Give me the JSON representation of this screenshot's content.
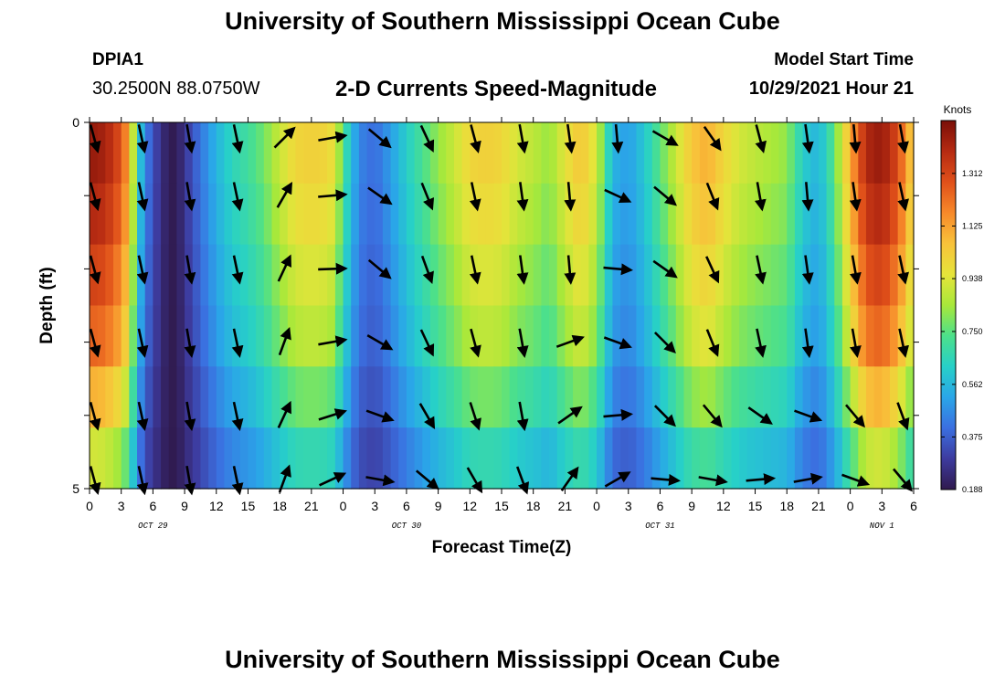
{
  "page": {
    "title_top": "University of Southern Mississippi Ocean Cube",
    "title_bottom": "University of Southern Mississippi Ocean Cube",
    "station_id": "DPIA1",
    "station_coords": "30.2500N  88.0750W",
    "chart_heading": "2-D Currents Speed-Magnitude",
    "model_start_label": "Model Start Time",
    "model_start_value": "10/29/2021 Hour 21"
  },
  "colors": {
    "arrow": "#000000",
    "palette": [
      "#301a4e",
      "#3d3b9e",
      "#3b6fe0",
      "#2aa6e8",
      "#27d0c8",
      "#4de08a",
      "#a8e83a",
      "#e6e43a",
      "#f8c23a",
      "#f7892a",
      "#e0501a",
      "#b52a12",
      "#7a0f08"
    ]
  },
  "chart_data": {
    "type": "heatmap",
    "title": "2-D Currents Speed-Magnitude",
    "xlabel": "Forecast Time(Z)",
    "ylabel": "Depth (ft)",
    "x_tick_labels": [
      "0",
      "3",
      "6",
      "9",
      "12",
      "15",
      "18",
      "21",
      "0",
      "3",
      "6",
      "9",
      "12",
      "15",
      "18",
      "21",
      "0",
      "3",
      "6",
      "9",
      "12",
      "15",
      "18",
      "21",
      "0",
      "3",
      "6"
    ],
    "day_labels": [
      "OCT 29",
      "OCT 30",
      "OCT 31",
      "NOV 1"
    ],
    "day_label_hours": [
      12,
      60,
      108,
      150
    ],
    "x_hours_range": [
      0,
      156
    ],
    "y_range": [
      0,
      5
    ],
    "y_tick_labels": [
      "0",
      "5"
    ],
    "colorbar": {
      "unit": "Knots",
      "range": [
        0.188,
        1.5
      ],
      "tick_labels": [
        "1.312",
        "1.125",
        "0.938",
        "0.750",
        "0.562",
        "0.375",
        "0.188"
      ]
    },
    "speed_profile_hours": [
      0,
      3,
      6,
      7.5,
      9,
      10.5,
      12,
      13.5,
      15,
      16.5,
      18,
      21,
      24,
      27,
      30,
      33,
      36,
      39,
      42,
      45,
      46.5,
      48,
      51,
      54,
      57,
      60,
      63,
      66,
      69,
      72,
      75,
      78,
      81,
      84,
      87,
      90,
      93,
      96,
      99,
      102,
      105,
      108,
      111,
      114,
      117,
      120,
      123,
      126,
      129,
      132,
      135,
      138,
      141,
      144,
      147,
      150,
      153,
      156
    ],
    "speed_profile_knots": [
      1.45,
      1.42,
      1.28,
      1.1,
      0.68,
      0.45,
      0.35,
      0.26,
      0.2,
      0.19,
      0.28,
      0.42,
      0.55,
      0.65,
      0.7,
      0.78,
      0.9,
      1.0,
      1.02,
      1.0,
      0.95,
      0.72,
      0.45,
      0.4,
      0.5,
      0.62,
      0.72,
      0.82,
      0.9,
      1.0,
      1.02,
      1.0,
      0.92,
      0.88,
      0.82,
      0.95,
      1.05,
      0.92,
      0.55,
      0.5,
      0.6,
      0.75,
      0.9,
      1.05,
      1.1,
      1.0,
      0.92,
      0.88,
      0.85,
      0.82,
      0.62,
      0.55,
      0.75,
      1.1,
      1.4,
      1.45,
      1.3,
      1.0
    ],
    "depth_layer_factor": [
      1.0,
      0.96,
      0.9,
      0.84,
      0.72,
      0.58
    ],
    "arrows": {
      "hours": [
        0,
        9,
        18,
        27,
        36,
        45,
        54,
        63,
        72,
        81,
        90,
        99,
        108,
        117,
        126,
        135,
        144,
        153
      ],
      "depths": [
        0,
        1,
        2,
        3,
        4,
        5
      ],
      "directions_deg": [
        [
          165,
          168,
          170,
          168,
          45,
          80,
          130,
          155,
          165,
          170,
          172,
          175,
          120,
          145,
          165,
          172,
          175,
          170
        ],
        [
          165,
          168,
          170,
          168,
          30,
          85,
          125,
          158,
          168,
          172,
          175,
          115,
          130,
          158,
          170,
          175,
          172,
          168
        ],
        [
          165,
          168,
          170,
          168,
          25,
          88,
          130,
          160,
          168,
          172,
          175,
          95,
          125,
          155,
          168,
          172,
          170,
          168
        ],
        [
          165,
          168,
          170,
          168,
          20,
          80,
          120,
          155,
          165,
          170,
          70,
          110,
          135,
          158,
          168,
          172,
          170,
          168
        ],
        [
          165,
          168,
          170,
          168,
          25,
          72,
          110,
          150,
          162,
          170,
          55,
          85,
          135,
          140,
          125,
          110,
          140,
          160
        ],
        [
          165,
          168,
          170,
          168,
          20,
          65,
          100,
          130,
          150,
          160,
          35,
          60,
          95,
          100,
          85,
          80,
          110,
          140
        ]
      ]
    }
  }
}
